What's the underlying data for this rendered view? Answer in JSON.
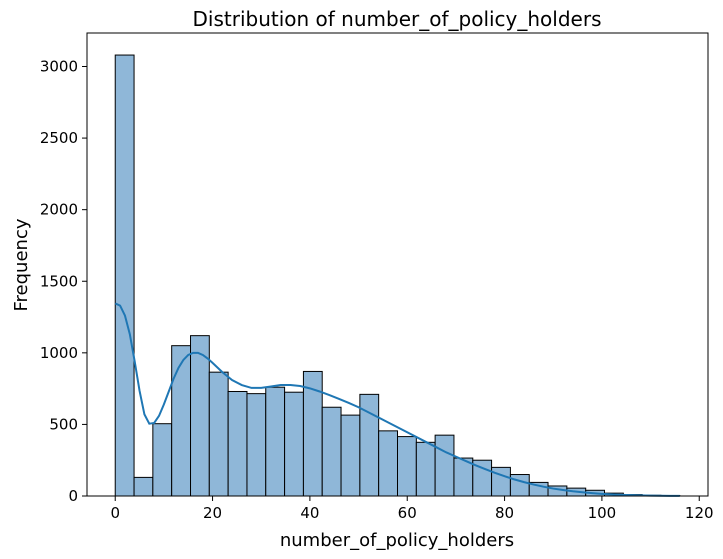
{
  "chart_data": {
    "type": "bar",
    "title": "Distribution of number_of_policy_holders",
    "xlabel": "number_of_policy_holders",
    "ylabel": "Frequency",
    "xlim": [
      -5.8,
      121.8
    ],
    "ylim": [
      0,
      3234
    ],
    "xticks": [
      0,
      20,
      40,
      60,
      80,
      100,
      120
    ],
    "yticks": [
      0,
      500,
      1000,
      1500,
      2000,
      2500,
      3000
    ],
    "grid": false,
    "legend": "none",
    "bar_color": "#8fb7d8",
    "edge_color": "#000000",
    "kde_color": "#1f77b4",
    "bins": [
      {
        "x0": 0.0,
        "x1": 3.87,
        "count": 3080
      },
      {
        "x0": 3.87,
        "x1": 7.73,
        "count": 130
      },
      {
        "x0": 7.73,
        "x1": 11.6,
        "count": 505
      },
      {
        "x0": 11.6,
        "x1": 15.47,
        "count": 1050
      },
      {
        "x0": 15.47,
        "x1": 19.33,
        "count": 1120
      },
      {
        "x0": 19.33,
        "x1": 23.2,
        "count": 865
      },
      {
        "x0": 23.2,
        "x1": 27.07,
        "count": 730
      },
      {
        "x0": 27.07,
        "x1": 30.93,
        "count": 715
      },
      {
        "x0": 30.93,
        "x1": 34.8,
        "count": 760
      },
      {
        "x0": 34.8,
        "x1": 38.67,
        "count": 725
      },
      {
        "x0": 38.67,
        "x1": 42.53,
        "count": 870
      },
      {
        "x0": 42.53,
        "x1": 46.4,
        "count": 620
      },
      {
        "x0": 46.4,
        "x1": 50.27,
        "count": 565
      },
      {
        "x0": 50.27,
        "x1": 54.13,
        "count": 710
      },
      {
        "x0": 54.13,
        "x1": 58.0,
        "count": 455
      },
      {
        "x0": 58.0,
        "x1": 61.87,
        "count": 415
      },
      {
        "x0": 61.87,
        "x1": 65.73,
        "count": 375
      },
      {
        "x0": 65.73,
        "x1": 69.6,
        "count": 425
      },
      {
        "x0": 69.6,
        "x1": 73.47,
        "count": 265
      },
      {
        "x0": 73.47,
        "x1": 77.33,
        "count": 250
      },
      {
        "x0": 77.33,
        "x1": 81.2,
        "count": 200
      },
      {
        "x0": 81.2,
        "x1": 85.07,
        "count": 150
      },
      {
        "x0": 85.07,
        "x1": 88.93,
        "count": 95
      },
      {
        "x0": 88.93,
        "x1": 92.8,
        "count": 70
      },
      {
        "x0": 92.8,
        "x1": 96.67,
        "count": 55
      },
      {
        "x0": 96.67,
        "x1": 100.53,
        "count": 40
      },
      {
        "x0": 100.53,
        "x1": 104.4,
        "count": 20
      },
      {
        "x0": 104.4,
        "x1": 108.27,
        "count": 10
      },
      {
        "x0": 108.27,
        "x1": 112.13,
        "count": 5
      },
      {
        "x0": 112.13,
        "x1": 116.0,
        "count": 3
      }
    ],
    "kde": [
      [
        0,
        1345
      ],
      [
        1,
        1330
      ],
      [
        2,
        1260
      ],
      [
        3,
        1130
      ],
      [
        4,
        940
      ],
      [
        5,
        735
      ],
      [
        6,
        570
      ],
      [
        7,
        505
      ],
      [
        8,
        510
      ],
      [
        9,
        560
      ],
      [
        10,
        640
      ],
      [
        11,
        730
      ],
      [
        12,
        820
      ],
      [
        13,
        895
      ],
      [
        14,
        950
      ],
      [
        15,
        985
      ],
      [
        16,
        1000
      ],
      [
        17,
        1000
      ],
      [
        18,
        985
      ],
      [
        19,
        960
      ],
      [
        20,
        930
      ],
      [
        22,
        865
      ],
      [
        24,
        810
      ],
      [
        26,
        775
      ],
      [
        28,
        755
      ],
      [
        30,
        755
      ],
      [
        32,
        765
      ],
      [
        34,
        775
      ],
      [
        36,
        775
      ],
      [
        38,
        768
      ],
      [
        40,
        752
      ],
      [
        42,
        730
      ],
      [
        44,
        705
      ],
      [
        46,
        678
      ],
      [
        48,
        650
      ],
      [
        50,
        620
      ],
      [
        52,
        585
      ],
      [
        54,
        550
      ],
      [
        56,
        515
      ],
      [
        58,
        480
      ],
      [
        60,
        445
      ],
      [
        62,
        410
      ],
      [
        64,
        375
      ],
      [
        66,
        340
      ],
      [
        68,
        305
      ],
      [
        70,
        275
      ],
      [
        72,
        245
      ],
      [
        74,
        215
      ],
      [
        76,
        188
      ],
      [
        78,
        162
      ],
      [
        80,
        138
      ],
      [
        82,
        116
      ],
      [
        84,
        97
      ],
      [
        86,
        80
      ],
      [
        88,
        65
      ],
      [
        90,
        52
      ],
      [
        92,
        42
      ],
      [
        94,
        33
      ],
      [
        96,
        26
      ],
      [
        98,
        20
      ],
      [
        100,
        15
      ],
      [
        102,
        11
      ],
      [
        104,
        8
      ],
      [
        106,
        6
      ],
      [
        108,
        4
      ],
      [
        110,
        3
      ],
      [
        112,
        2
      ],
      [
        114,
        1
      ],
      [
        116,
        1
      ]
    ]
  }
}
